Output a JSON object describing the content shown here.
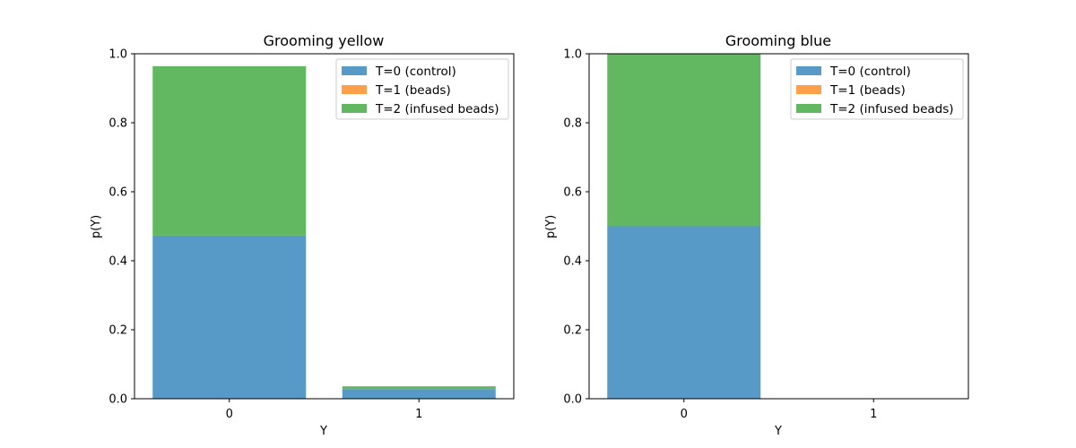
{
  "chart_data": [
    {
      "type": "bar",
      "stacked": true,
      "title": "Grooming yellow",
      "xlabel": "Y",
      "ylabel": "p(Y)",
      "categories": [
        "0",
        "1"
      ],
      "ylim": [
        0,
        1
      ],
      "yticks": [
        "0.0",
        "0.2",
        "0.4",
        "0.6",
        "0.8",
        "1.0"
      ],
      "legend_position": "top-right",
      "series": [
        {
          "name": "T=0 (control)",
          "color": "#5799c7",
          "values": [
            0.473,
            0.028
          ]
        },
        {
          "name": "T=1 (beads)",
          "color": "#ff9f4a",
          "values": [
            0,
            0
          ]
        },
        {
          "name": "T=2 (infused beads)",
          "color": "#61b861",
          "values": [
            0.491,
            0.008
          ]
        }
      ]
    },
    {
      "type": "bar",
      "stacked": true,
      "title": "Grooming blue",
      "xlabel": "Y",
      "ylabel": "p(Y)",
      "categories": [
        "0",
        "1"
      ],
      "ylim": [
        0,
        1
      ],
      "yticks": [
        "0.0",
        "0.2",
        "0.4",
        "0.6",
        "0.8",
        "1.0"
      ],
      "legend_position": "top-right",
      "series": [
        {
          "name": "T=0 (control)",
          "color": "#5799c7",
          "values": [
            0.5,
            0
          ]
        },
        {
          "name": "T=1 (beads)",
          "color": "#ff9f4a",
          "values": [
            0,
            0
          ]
        },
        {
          "name": "T=2 (infused beads)",
          "color": "#61b861",
          "values": [
            0.5,
            0
          ]
        }
      ]
    }
  ]
}
